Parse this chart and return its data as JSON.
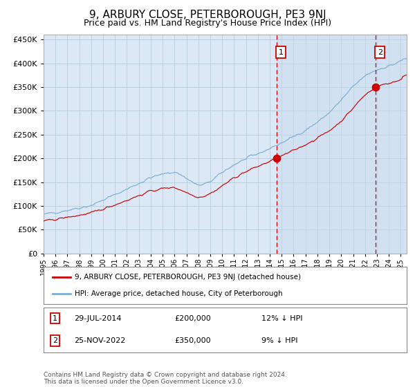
{
  "title": "9, ARBURY CLOSE, PETERBOROUGH, PE3 9NJ",
  "subtitle": "Price paid vs. HM Land Registry's House Price Index (HPI)",
  "title_fontsize": 11,
  "subtitle_fontsize": 9,
  "background_color": "#ffffff",
  "plot_bg_color": "#dce8f5",
  "grid_color": "#c8d8e8",
  "hpi_color": "#7aafd4",
  "price_color": "#cc0000",
  "shade_color": "#c5d9ee",
  "sale1_date_num": 2014.57,
  "sale1_price": 200000,
  "sale2_date_num": 2022.9,
  "sale2_price": 350000,
  "legend_line1": "9, ARBURY CLOSE, PETERBOROUGH, PE3 9NJ (detached house)",
  "legend_line2": "HPI: Average price, detached house, City of Peterborough",
  "ann1_box": "1",
  "ann1_date": "29-JUL-2014",
  "ann1_price": "£200,000",
  "ann1_pct": "12% ↓ HPI",
  "ann2_box": "2",
  "ann2_date": "25-NOV-2022",
  "ann2_price": "£350,000",
  "ann2_pct": "9% ↓ HPI",
  "footnote": "Contains HM Land Registry data © Crown copyright and database right 2024.\nThis data is licensed under the Open Government Licence v3.0.",
  "xmin": 1995,
  "xmax": 2025.5,
  "ymin": 0,
  "ymax": 460000
}
